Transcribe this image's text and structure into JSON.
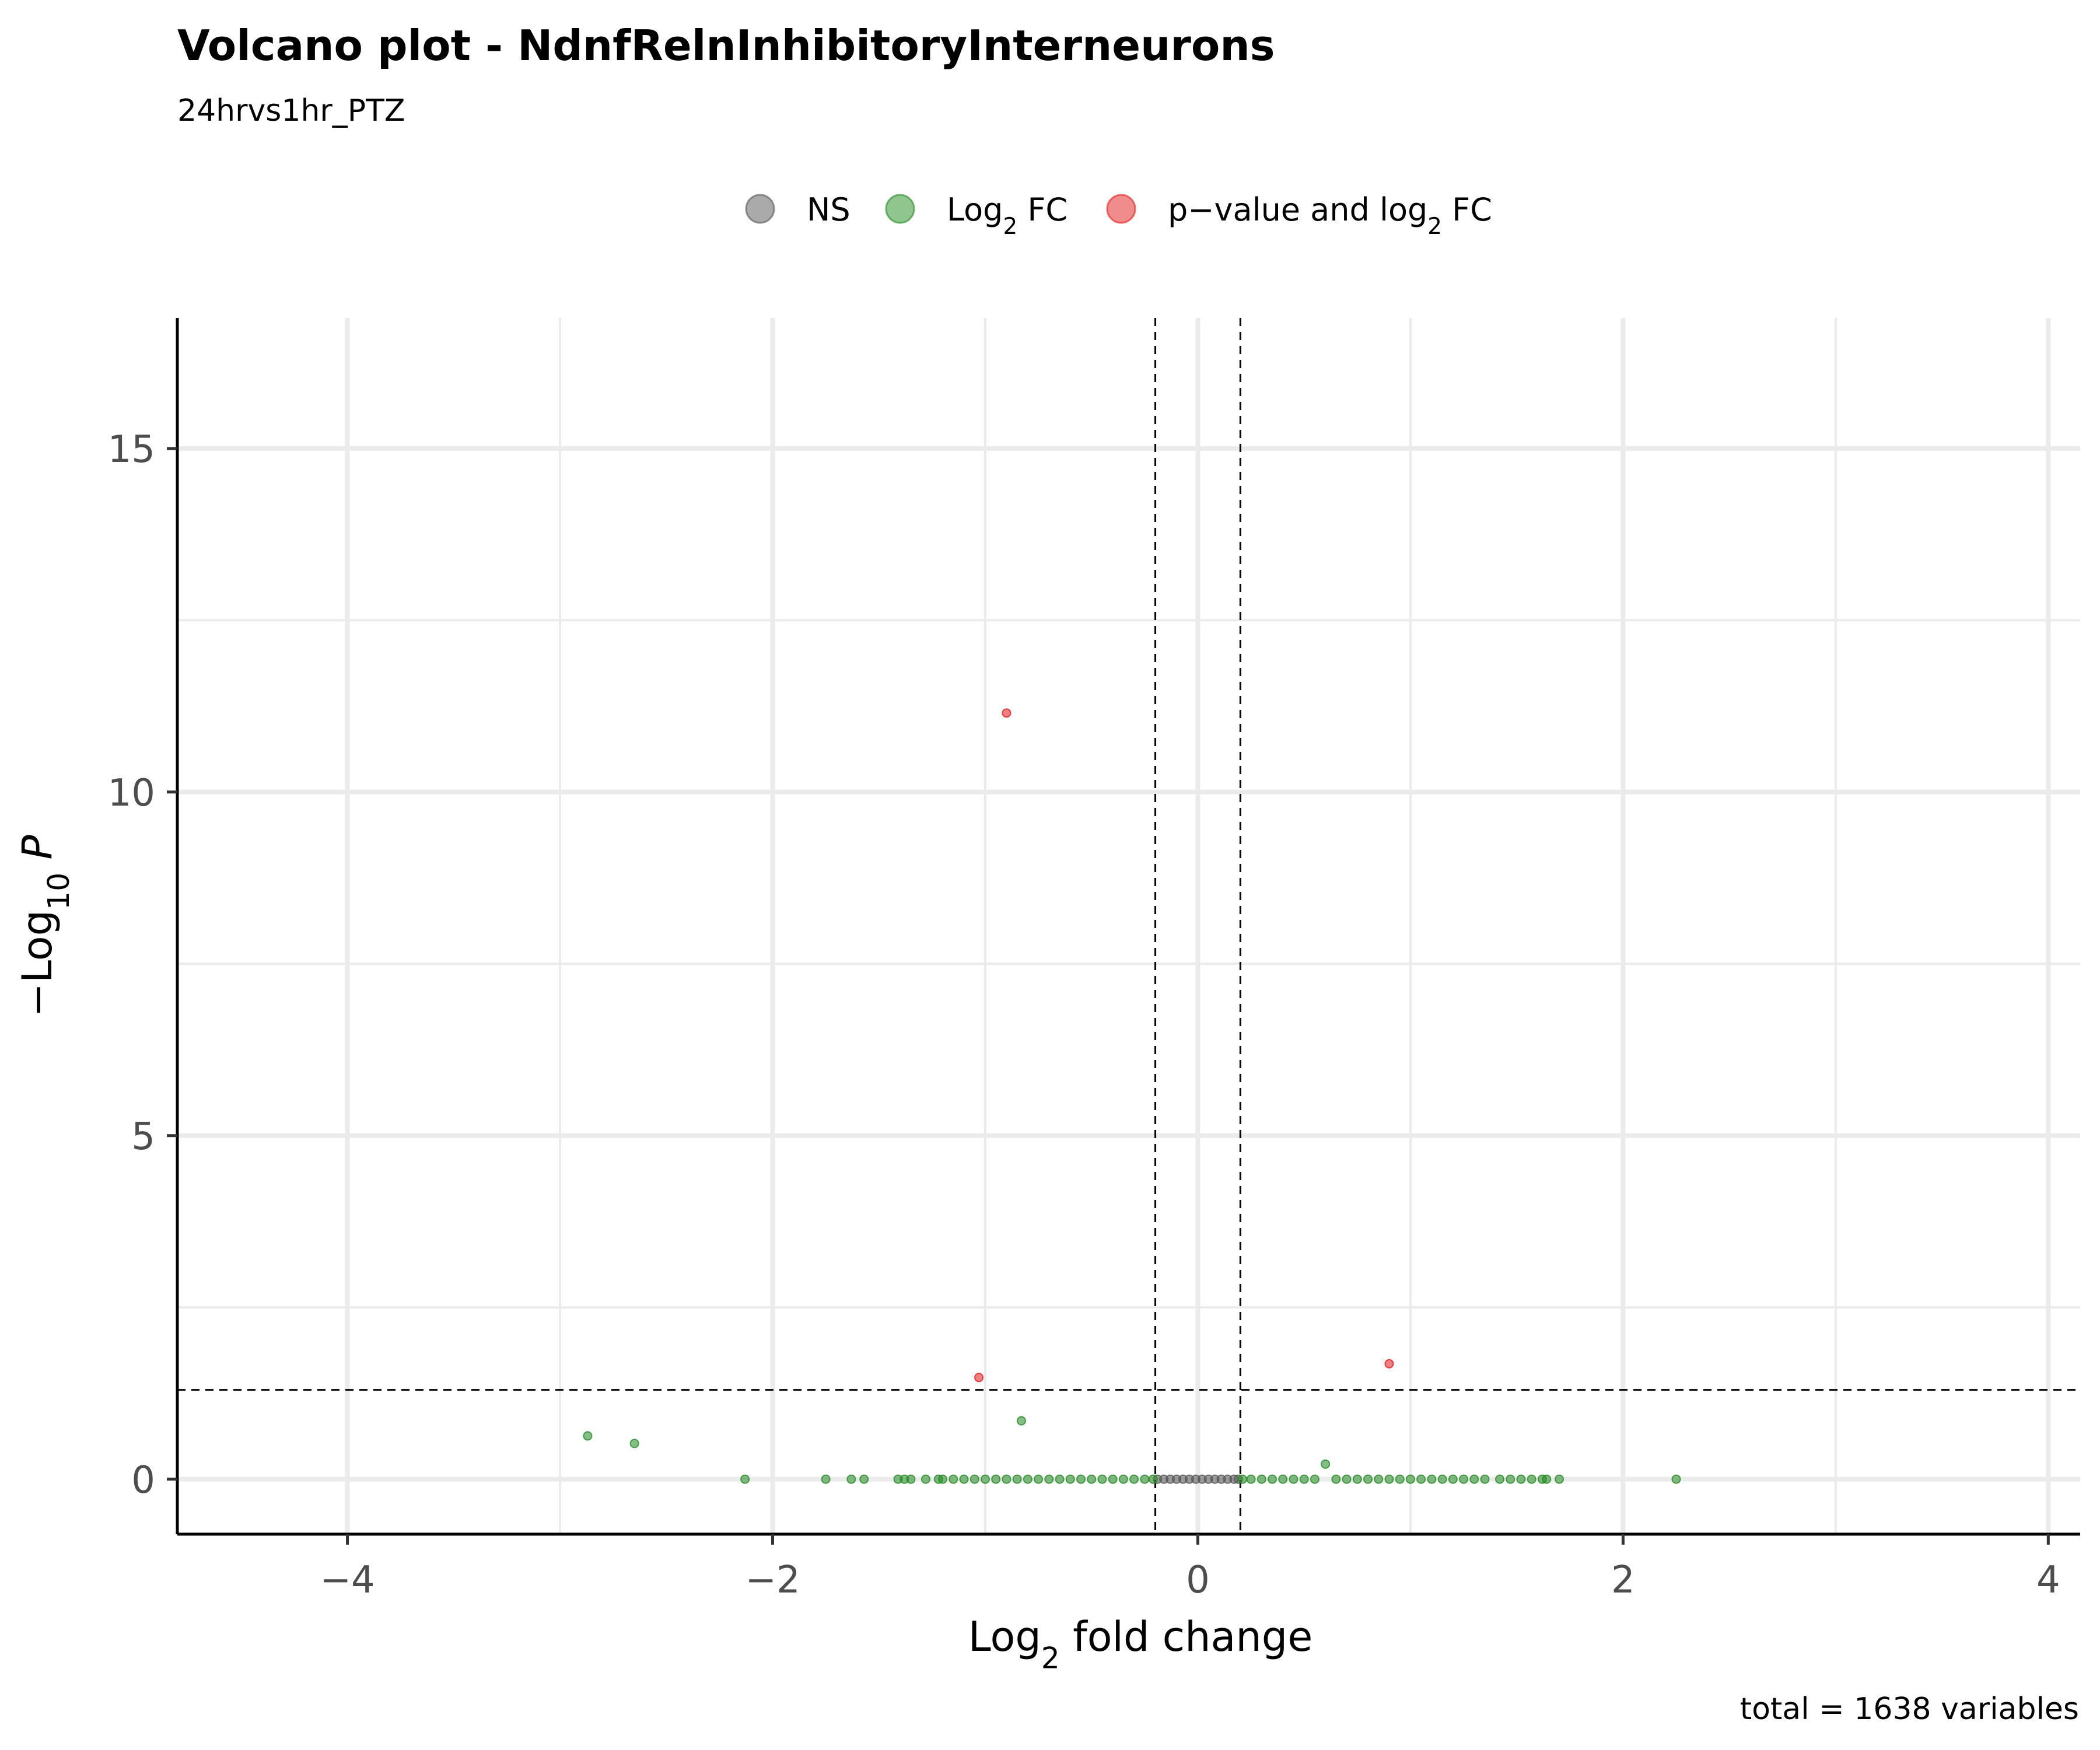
{
  "chart_data": {
    "type": "scatter",
    "title": "Volcano plot - NdnfRelnInhibitoryInterneurons",
    "subtitle": "24hrvs1hr_PTZ",
    "xlabel": "Log2 fold change",
    "ylabel": "-Log10 P",
    "caption": "total = 1638 variables",
    "xlim": [
      -4.8,
      4.15
    ],
    "ylim": [
      -0.8,
      16.9
    ],
    "x_ticks": [
      -4,
      -2,
      0,
      2,
      4
    ],
    "y_ticks": [
      0,
      5,
      10,
      15
    ],
    "x_tick_labels": [
      "-4",
      "-2",
      "0",
      "2",
      "4"
    ],
    "y_tick_labels": [
      "0",
      "5",
      "10",
      "15"
    ],
    "grid": true,
    "legend_position": "top",
    "thresholds": {
      "log2fc": [
        -0.2,
        0.2
      ],
      "neg_log10_p": 1.3
    },
    "legend": [
      {
        "key": "ns",
        "label": "NS",
        "color": "#555555"
      },
      {
        "key": "fc",
        "label": "Log2 FC",
        "color": "#228B22"
      },
      {
        "key": "both",
        "label": "p - value and log2 FC",
        "color": "#E31A1C"
      }
    ],
    "series": [
      {
        "name": "NS",
        "color": "#555555",
        "points": [
          [
            -0.19,
            0
          ],
          [
            -0.16,
            0
          ],
          [
            -0.13,
            0
          ],
          [
            -0.1,
            0
          ],
          [
            -0.07,
            0
          ],
          [
            -0.04,
            0
          ],
          [
            -0.01,
            0
          ],
          [
            0.02,
            0
          ],
          [
            0.05,
            0
          ],
          [
            0.08,
            0
          ],
          [
            0.11,
            0
          ],
          [
            0.14,
            0
          ],
          [
            0.17,
            0
          ],
          [
            0.19,
            0
          ]
        ]
      },
      {
        "name": "Log2 FC",
        "color": "#228B22",
        "points": [
          [
            -2.87,
            0.63
          ],
          [
            -2.65,
            0.52
          ],
          [
            -2.13,
            0
          ],
          [
            -1.75,
            0
          ],
          [
            -1.63,
            0
          ],
          [
            -1.57,
            0
          ],
          [
            -1.41,
            0
          ],
          [
            -1.38,
            0
          ],
          [
            -1.35,
            0
          ],
          [
            -1.28,
            0
          ],
          [
            -1.22,
            0
          ],
          [
            -1.2,
            0
          ],
          [
            -1.15,
            0
          ],
          [
            -1.1,
            0
          ],
          [
            -1.05,
            0
          ],
          [
            -1.0,
            0
          ],
          [
            -0.95,
            0
          ],
          [
            -0.9,
            0
          ],
          [
            -0.83,
            0.85
          ],
          [
            -0.85,
            0
          ],
          [
            -0.8,
            0
          ],
          [
            -0.75,
            0
          ],
          [
            -0.7,
            0
          ],
          [
            -0.65,
            0
          ],
          [
            -0.6,
            0
          ],
          [
            -0.55,
            0
          ],
          [
            -0.5,
            0
          ],
          [
            -0.45,
            0
          ],
          [
            -0.4,
            0
          ],
          [
            -0.35,
            0
          ],
          [
            -0.3,
            0
          ],
          [
            -0.25,
            0
          ],
          [
            -0.21,
            0
          ],
          [
            0.21,
            0
          ],
          [
            0.25,
            0
          ],
          [
            0.3,
            0
          ],
          [
            0.35,
            0
          ],
          [
            0.4,
            0
          ],
          [
            0.45,
            0
          ],
          [
            0.5,
            0
          ],
          [
            0.55,
            0
          ],
          [
            0.6,
            0.22
          ],
          [
            0.65,
            0
          ],
          [
            0.7,
            0
          ],
          [
            0.75,
            0
          ],
          [
            0.8,
            0
          ],
          [
            0.85,
            0
          ],
          [
            0.9,
            0
          ],
          [
            0.95,
            0
          ],
          [
            1.0,
            0
          ],
          [
            1.05,
            0
          ],
          [
            1.1,
            0
          ],
          [
            1.15,
            0
          ],
          [
            1.2,
            0
          ],
          [
            1.25,
            0
          ],
          [
            1.3,
            0
          ],
          [
            1.35,
            0
          ],
          [
            1.42,
            0
          ],
          [
            1.47,
            0
          ],
          [
            1.52,
            0
          ],
          [
            1.57,
            0
          ],
          [
            1.62,
            0
          ],
          [
            1.64,
            0
          ],
          [
            1.7,
            0
          ],
          [
            2.25,
            0
          ]
        ]
      },
      {
        "name": "p - value and log2 FC",
        "color": "#E31A1C",
        "points": [
          [
            -0.9,
            11.15
          ],
          [
            -1.03,
            1.48
          ],
          [
            0.9,
            1.68
          ]
        ]
      }
    ]
  }
}
